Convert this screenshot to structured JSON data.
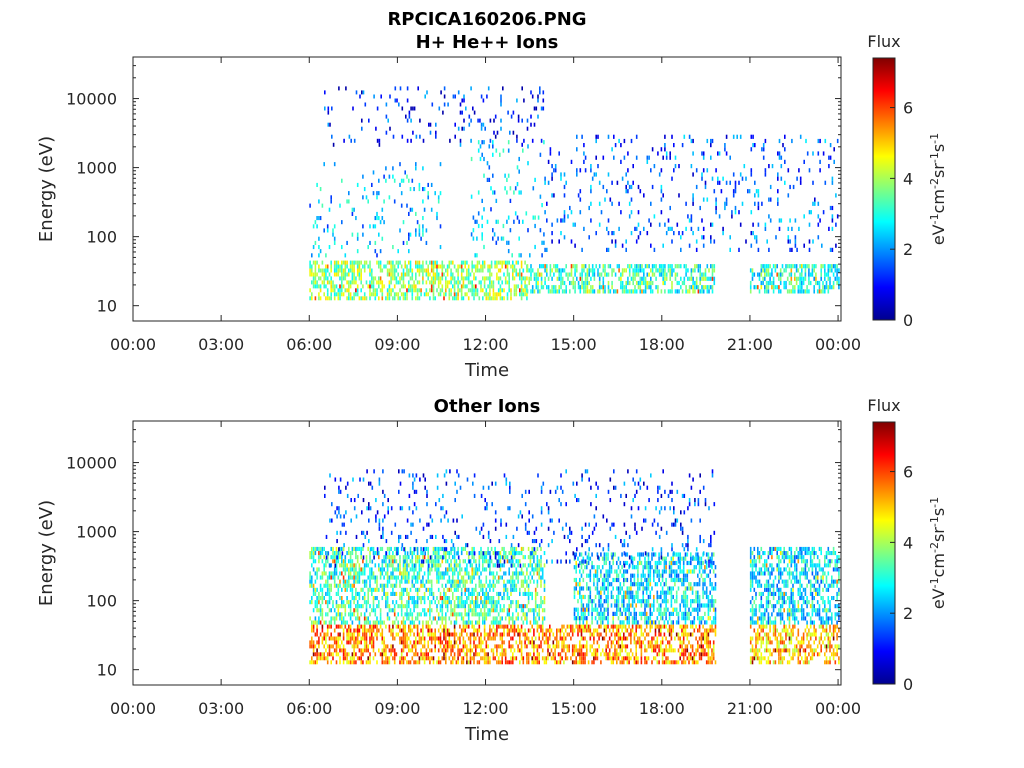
{
  "figure": {
    "title_line1": "RPCICA160206.PNG",
    "title_line2": "H+ He++ Ions"
  },
  "panels": [
    {
      "title": "H+ He++ Ions",
      "xlabel": "Time",
      "ylabel": "Energy (eV)",
      "colorbar_title": "Flux",
      "colorbar_unit_text": "eV-1cm-2sr-1s-1"
    },
    {
      "title": "Other Ions",
      "xlabel": "Time",
      "ylabel": "Energy (eV)",
      "colorbar_title": "Flux",
      "colorbar_unit_text": "eV-1cm-2sr-1s-1"
    }
  ],
  "chart_data": [
    {
      "type": "heatmap",
      "title": "H+ He++ Ions",
      "xlabel": "Time",
      "ylabel": "Energy (eV)",
      "x_ticks": [
        "00:00",
        "03:00",
        "06:00",
        "09:00",
        "12:00",
        "15:00",
        "18:00",
        "21:00",
        "00:00"
      ],
      "xlim_hours": [
        0,
        24.1
      ],
      "y_scale": "log",
      "y_ticks": [
        10,
        100,
        1000,
        10000
      ],
      "ylim": [
        6,
        40000
      ],
      "colorbar": {
        "label": "Flux",
        "ticks": [
          0,
          2,
          4,
          6
        ],
        "range": [
          0,
          7.4
        ],
        "colormap": "jet"
      },
      "data_gaps_hours": [
        [
          0,
          6.0
        ],
        [
          19.8,
          21.0
        ]
      ],
      "regions": [
        {
          "t_start": 6.0,
          "t_end": 13.4,
          "e_min": 12,
          "e_max": 45,
          "flux": 3.8
        },
        {
          "t_start": 13.4,
          "t_end": 19.8,
          "e_min": 15,
          "e_max": 40,
          "flux": 3.2
        },
        {
          "t_start": 21.0,
          "t_end": 24.0,
          "e_min": 15,
          "e_max": 40,
          "flux": 3.0
        },
        {
          "t_start": 6.0,
          "t_end": 10.5,
          "e_min": 50,
          "e_max": 1200,
          "flux": 2.3
        },
        {
          "t_start": 11.5,
          "t_end": 14.0,
          "e_min": 50,
          "e_max": 2500,
          "flux": 2.3
        },
        {
          "t_start": 14.0,
          "t_end": 24.0,
          "e_min": 60,
          "e_max": 3000,
          "flux": 1.6
        },
        {
          "t_start": 6.5,
          "t_end": 14.0,
          "e_min": 2000,
          "e_max": 15000,
          "flux": 1.2
        }
      ]
    },
    {
      "type": "heatmap",
      "title": "Other Ions",
      "xlabel": "Time",
      "ylabel": "Energy (eV)",
      "x_ticks": [
        "00:00",
        "03:00",
        "06:00",
        "09:00",
        "12:00",
        "15:00",
        "18:00",
        "21:00",
        "00:00"
      ],
      "xlim_hours": [
        0,
        24.1
      ],
      "y_scale": "log",
      "y_ticks": [
        10,
        100,
        1000,
        10000
      ],
      "ylim": [
        6,
        40000
      ],
      "colorbar": {
        "label": "Flux",
        "ticks": [
          0,
          2,
          4,
          6
        ],
        "range": [
          0,
          7.4
        ],
        "colormap": "jet"
      },
      "data_gaps_hours": [
        [
          0,
          6.0
        ],
        [
          19.8,
          21.0
        ]
      ],
      "regions": [
        {
          "t_start": 6.0,
          "t_end": 19.8,
          "e_min": 12,
          "e_max": 45,
          "flux": 5.4
        },
        {
          "t_start": 21.0,
          "t_end": 24.0,
          "e_min": 12,
          "e_max": 45,
          "flux": 5.0
        },
        {
          "t_start": 6.0,
          "t_end": 14.0,
          "e_min": 45,
          "e_max": 600,
          "flux": 3.2
        },
        {
          "t_start": 15.0,
          "t_end": 19.8,
          "e_min": 45,
          "e_max": 500,
          "flux": 2.6
        },
        {
          "t_start": 21.0,
          "t_end": 24.0,
          "e_min": 45,
          "e_max": 600,
          "flux": 2.6
        },
        {
          "t_start": 6.5,
          "t_end": 19.8,
          "e_min": 300,
          "e_max": 8000,
          "flux": 1.4
        }
      ]
    }
  ]
}
